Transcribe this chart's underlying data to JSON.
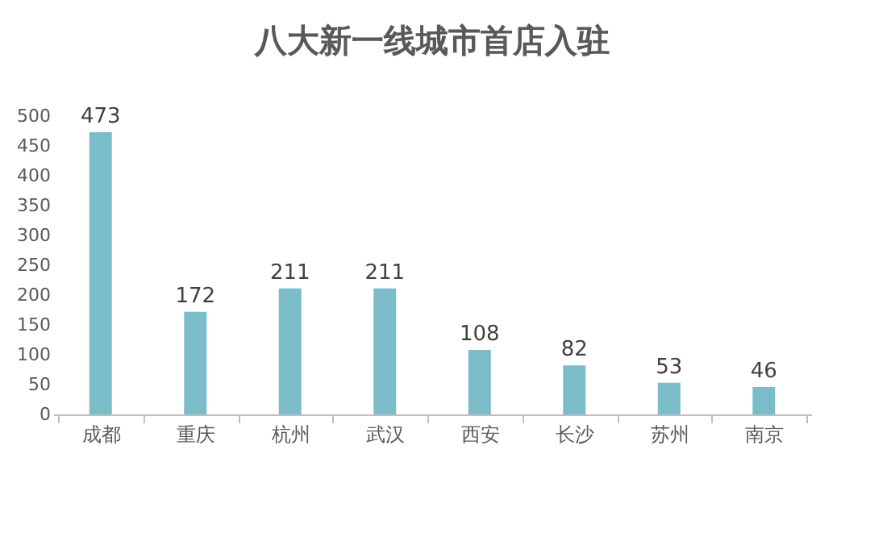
{
  "chart_data": {
    "type": "bar",
    "title": "八大新一线城市首店入驻",
    "categories": [
      "成都",
      "重庆",
      "杭州",
      "武汉",
      "西安",
      "长沙",
      "苏州",
      "南京"
    ],
    "values": [
      473,
      172,
      211,
      211,
      108,
      82,
      53,
      46
    ],
    "color": "#7bbcc9",
    "ylim": [
      0,
      500
    ],
    "yticks": [
      0,
      50,
      100,
      150,
      200,
      250,
      300,
      350,
      400,
      450,
      500
    ],
    "data_labels": true,
    "grid": false
  }
}
